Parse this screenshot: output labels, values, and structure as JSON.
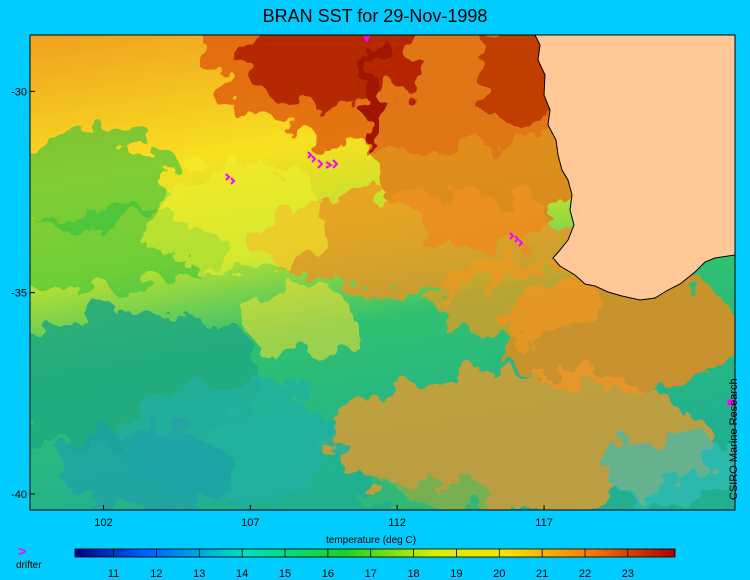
{
  "title": "BRAN SST for 29-Nov-1998",
  "map": {
    "lon_range": [
      99.5,
      123.5
    ],
    "lat_range": [
      -40.4,
      -28.6
    ],
    "x_ticks": [
      "102",
      "107",
      "112",
      "117"
    ],
    "x_tick_values": [
      102,
      107,
      112,
      117
    ],
    "y_ticks": [
      "-30",
      "-35",
      "-40"
    ],
    "y_tick_values": [
      -30,
      -35,
      -40
    ],
    "colors": {
      "land": "#ffc896",
      "background": "#00ccff",
      "drifter": "#ff00ff",
      "coastline": "#000000"
    }
  },
  "colorbar": {
    "title": "temperature (deg C)",
    "ticks": [
      "11",
      "12",
      "13",
      "14",
      "15",
      "16",
      "17",
      "18",
      "19",
      "20",
      "21",
      "22",
      "23"
    ],
    "min": 10.1,
    "max": 24.1
  },
  "legend": {
    "marker": ">",
    "label": "drifter"
  },
  "credit": "CSIRO Marine Research"
}
